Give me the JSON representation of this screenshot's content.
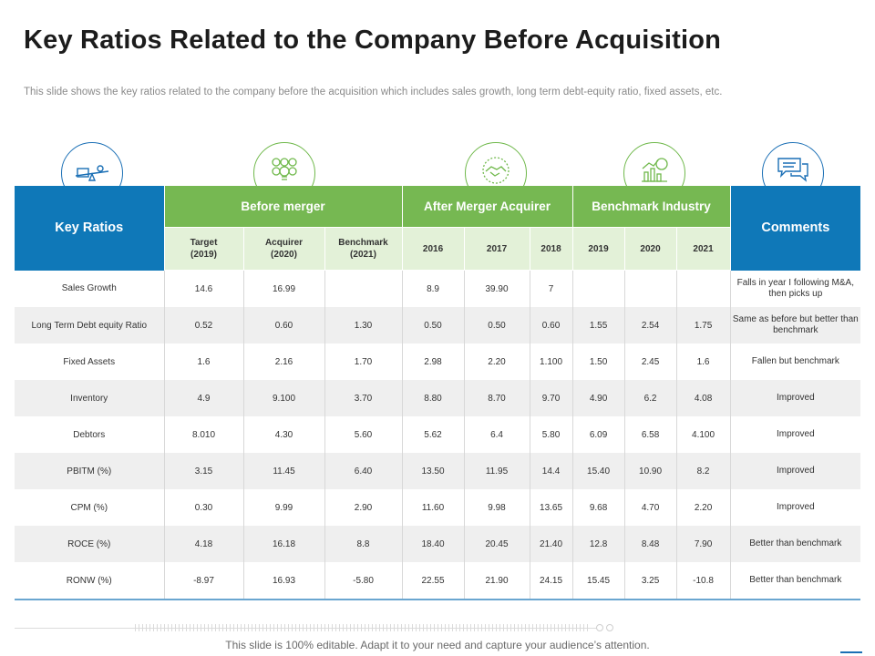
{
  "title": "Key Ratios Related to the Company Before Acquisition",
  "subtitle": "This slide shows the key ratios related to the company before the acquisition which includes sales growth, long term debt-equity ratio, fixed assets, etc.",
  "icons": [
    "scale-balance-icon",
    "idea-bulbs-icon",
    "handshake-icon",
    "growth-chart-icon",
    "chat-bubbles-icon"
  ],
  "colors": {
    "blue": "#0f78b8",
    "green": "#76b852",
    "light_green": "#e3f1d8",
    "row_alt": "#efefef"
  },
  "table": {
    "key_header": "Key Ratios",
    "comments_header": "Comments",
    "groups": [
      "Before merger",
      "After Merger Acquirer",
      "Benchmark Industry"
    ],
    "subheaders": [
      {
        "line1": "Target",
        "line2": "(2019)"
      },
      {
        "line1": "Acquirer",
        "line2": "(2020)"
      },
      {
        "line1": "Benchmark",
        "line2": "(2021)"
      },
      {
        "line1": "2016",
        "line2": ""
      },
      {
        "line1": "2017",
        "line2": ""
      },
      {
        "line1": "2018",
        "line2": ""
      },
      {
        "line1": "2019",
        "line2": ""
      },
      {
        "line1": "2020",
        "line2": ""
      },
      {
        "line1": "2021",
        "line2": ""
      }
    ],
    "rows": [
      {
        "label": "Sales Growth",
        "values": [
          "14.6",
          "16.99",
          "",
          "8.9",
          "39.90",
          "7",
          "",
          "",
          ""
        ],
        "comment": "Falls in year I following M&A, then picks up"
      },
      {
        "label": "Long Term Debt equity Ratio",
        "values": [
          "0.52",
          "0.60",
          "1.30",
          "0.50",
          "0.50",
          "0.60",
          "1.55",
          "2.54",
          "1.75"
        ],
        "comment": "Same as before but better than benchmark"
      },
      {
        "label": "Fixed Assets",
        "values": [
          "1.6",
          "2.16",
          "1.70",
          "2.98",
          "2.20",
          "1.100",
          "1.50",
          "2.45",
          "1.6"
        ],
        "comment": "Fallen but benchmark"
      },
      {
        "label": "Inventory",
        "values": [
          "4.9",
          "9.100",
          "3.70",
          "8.80",
          "8.70",
          "9.70",
          "4.90",
          "6.2",
          "4.08"
        ],
        "comment": "Improved"
      },
      {
        "label": "Debtors",
        "values": [
          "8.010",
          "4.30",
          "5.60",
          "5.62",
          "6.4",
          "5.80",
          "6.09",
          "6.58",
          "4.100"
        ],
        "comment": "Improved"
      },
      {
        "label": "PBITM   (%)",
        "values": [
          "3.15",
          "11.45",
          "6.40",
          "13.50",
          "11.95",
          "14.4",
          "15.40",
          "10.90",
          "8.2"
        ],
        "comment": "Improved"
      },
      {
        "label": "CPM   (%)",
        "values": [
          "0.30",
          "9.99",
          "2.90",
          "11.60",
          "9.98",
          "13.65",
          "9.68",
          "4.70",
          "2.20"
        ],
        "comment": "Improved"
      },
      {
        "label": "ROCE   (%)",
        "values": [
          "4.18",
          "16.18",
          "8.8",
          "18.40",
          "20.45",
          "21.40",
          "12.8",
          "8.48",
          "7.90"
        ],
        "comment": "Better than benchmark"
      },
      {
        "label": "RONW   (%)",
        "values": [
          "-8.97",
          "16.93",
          "-5.80",
          "22.55",
          "21.90",
          "24.15",
          "15.45",
          "3.25",
          "-10.8"
        ],
        "comment": "Better than benchmark"
      }
    ]
  },
  "footer": "This slide is 100% editable. Adapt it to your need and capture your audience’s attention."
}
